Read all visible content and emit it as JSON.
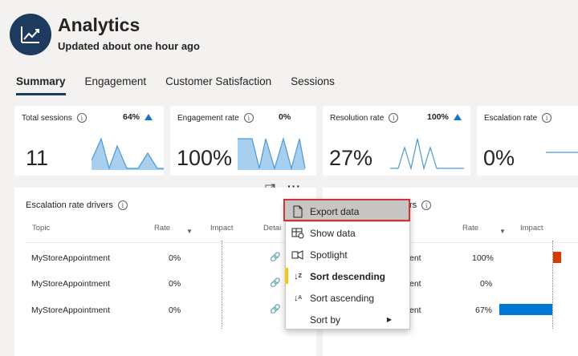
{
  "app": {
    "title": "Analytics",
    "subtitle": "Updated about one hour ago",
    "logo_icon": "trend-line-icon"
  },
  "tabs": [
    {
      "label": "Summary",
      "active": true
    },
    {
      "label": "Engagement",
      "active": false
    },
    {
      "label": "Customer Satisfaction",
      "active": false
    },
    {
      "label": "Sessions",
      "active": false
    }
  ],
  "kpis": [
    {
      "label": "Total sessions",
      "pct": "64%",
      "trend": "up",
      "value": "11"
    },
    {
      "label": "Engagement rate",
      "pct": "0%",
      "trend": "none",
      "value": "100%"
    },
    {
      "label": "Resolution rate",
      "pct": "100%",
      "trend": "up",
      "value": "27%"
    },
    {
      "label": "Escalation rate",
      "pct": "",
      "trend": "none",
      "value": "0%"
    }
  ],
  "left_panel": {
    "title": "Escalation rate drivers",
    "columns": {
      "topic": "Topic",
      "rate": "Rate",
      "impact": "Impact",
      "details": "Detai"
    },
    "rows": [
      {
        "topic": "MyStoreAppointment",
        "rate": "0%"
      },
      {
        "topic": "MyStoreAppointment",
        "rate": "0%"
      },
      {
        "topic": "MyStoreAppointment",
        "rate": "0%"
      }
    ]
  },
  "right_panel": {
    "title": "rs",
    "columns": {
      "rate": "Rate",
      "impact": "Impact"
    },
    "rows": [
      {
        "topic": "ent",
        "rate": "100%",
        "impact": 0.08,
        "impact_color": "#d83b01"
      },
      {
        "topic": "ent",
        "rate": "0%",
        "impact": 0,
        "impact_color": "#0078d4"
      },
      {
        "topic": "ent",
        "rate": "67%",
        "impact": 0.55,
        "impact_color": "#0078d4"
      }
    ]
  },
  "context_menu": {
    "items": [
      {
        "label": "Export data",
        "icon": "export-file-icon",
        "selected": true
      },
      {
        "label": "Show data",
        "icon": "table-view-icon"
      },
      {
        "label": "Spotlight",
        "icon": "spotlight-icon"
      },
      {
        "label": "Sort descending",
        "icon": "sort-descending-icon",
        "active": true
      },
      {
        "label": "Sort ascending",
        "icon": "sort-ascending-icon"
      },
      {
        "label": "Sort by",
        "icon": "",
        "submenu": true
      }
    ]
  },
  "colors": {
    "accent": "#1d3a5f",
    "spark_fill": "#a9cfee",
    "spark_line": "#4a9ad8",
    "highlight": "#d13438"
  }
}
